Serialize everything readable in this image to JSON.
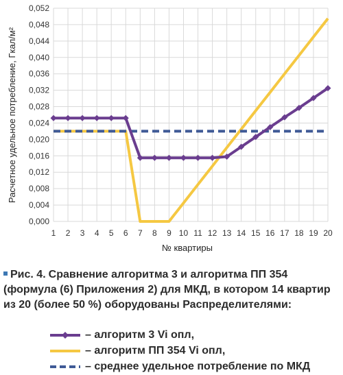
{
  "chart_data": {
    "type": "line",
    "ylabel": "Расчетное удельное потребление, Гкал/м²",
    "xlabel": "№ квартиры",
    "x": [
      1,
      2,
      3,
      4,
      5,
      6,
      7,
      8,
      9,
      10,
      11,
      12,
      13,
      14,
      15,
      16,
      17,
      18,
      19,
      20
    ],
    "ylim": [
      0,
      0.052
    ],
    "yticks": [
      "0,000",
      "0,004",
      "0,008",
      "0,012",
      "0,016",
      "0,020",
      "0,024",
      "0,028",
      "0,032",
      "0,036",
      "0,040",
      "0,044",
      "0,048",
      "0,052"
    ],
    "grid": true,
    "series": [
      {
        "name": "– алгоритм 3 Vi опл,",
        "color": "#6a3d8f",
        "style": "solid-diamond",
        "values": [
          0.0252,
          0.0252,
          0.0252,
          0.0252,
          0.0252,
          0.0252,
          0.0155,
          0.0155,
          0.0155,
          0.0155,
          0.0155,
          0.0155,
          0.0158,
          0.0182,
          0.0206,
          0.023,
          0.0254,
          0.0277,
          0.0301,
          0.0325
        ]
      },
      {
        "name": "– алгоритм ПП 354 Vi опл,",
        "color": "#f5c842",
        "style": "solid",
        "values": [
          0.022,
          0.022,
          0.022,
          0.022,
          0.022,
          0.022,
          0.0,
          0.0,
          0.0,
          0.0045,
          0.009,
          0.0135,
          0.018,
          0.0225,
          0.027,
          0.0315,
          0.036,
          0.0405,
          0.045,
          0.0495
        ]
      },
      {
        "name": "– среднее удельное потребление по МКД",
        "color": "#3f5a96",
        "style": "dashed",
        "values": [
          0.022,
          0.022,
          0.022,
          0.022,
          0.022,
          0.022,
          0.022,
          0.022,
          0.022,
          0.022,
          0.022,
          0.022,
          0.022,
          0.022,
          0.022,
          0.022,
          0.022,
          0.022,
          0.022,
          0.022
        ]
      }
    ]
  },
  "caption": {
    "number": "Рис. 4.",
    "text": "Сравнение алгоритма 3 и алгоритма ПП 354 (формула (6) Приложения 2) для МКД, в котором 14 квартир из 20 (более 50 %) оборудованы Распределителями:"
  }
}
